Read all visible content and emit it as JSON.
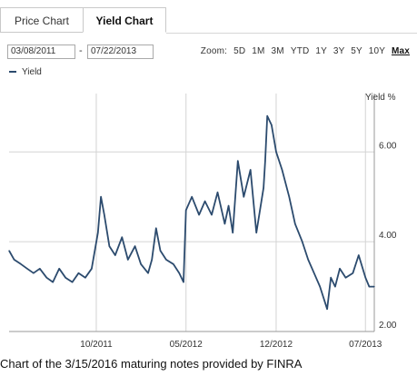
{
  "tabs": {
    "price": "Price Chart",
    "yield": "Yield Chart"
  },
  "date_from": "03/08/2011",
  "date_separator": "-",
  "date_to": "07/22/2013",
  "zoom": {
    "label": "Zoom:",
    "options": [
      "5D",
      "1M",
      "3M",
      "YTD",
      "1Y",
      "3Y",
      "5Y",
      "10Y"
    ],
    "selected": "Max"
  },
  "legend_label": "Yield",
  "caption": "Chart of the 3/15/2016 maturing notes provided by FINRA",
  "colors": {
    "line": "#2c4b6e",
    "grid": "#d4d4d4",
    "axis": "#999999"
  },
  "chart_data": {
    "type": "line",
    "ylabel": "Yield %",
    "ylim": [
      2.0,
      7.3
    ],
    "yticks": [
      "2.00",
      "4.00",
      "6.00"
    ],
    "ytick_values": [
      2.0,
      4.0,
      6.0
    ],
    "xlim": [
      "2011-03-08",
      "2013-07-22"
    ],
    "xticks": [
      "10/2011",
      "05/2012",
      "12/2012",
      "07/2013"
    ],
    "xtick_dates": [
      "2011-10-01",
      "2012-05-01",
      "2012-12-01",
      "2013-07-01"
    ],
    "grid": "vertical at x ticks, horizontal at y ticks",
    "series": [
      {
        "name": "Yield",
        "x": [
          "2011-03-08",
          "2011-03-20",
          "2011-04-05",
          "2011-04-20",
          "2011-05-05",
          "2011-05-20",
          "2011-06-05",
          "2011-06-20",
          "2011-07-05",
          "2011-07-20",
          "2011-08-05",
          "2011-08-20",
          "2011-09-05",
          "2011-09-20",
          "2011-10-05",
          "2011-10-12",
          "2011-10-20",
          "2011-11-01",
          "2011-11-15",
          "2011-12-01",
          "2011-12-15",
          "2012-01-01",
          "2012-01-15",
          "2012-02-01",
          "2012-02-10",
          "2012-02-20",
          "2012-03-01",
          "2012-03-15",
          "2012-04-01",
          "2012-04-15",
          "2012-04-25",
          "2012-05-01",
          "2012-05-15",
          "2012-06-01",
          "2012-06-15",
          "2012-07-01",
          "2012-07-15",
          "2012-08-01",
          "2012-08-10",
          "2012-08-20",
          "2012-09-01",
          "2012-09-15",
          "2012-10-01",
          "2012-10-15",
          "2012-11-01",
          "2012-11-05",
          "2012-11-10",
          "2012-11-20",
          "2012-12-01",
          "2012-12-15",
          "2013-01-01",
          "2013-01-15",
          "2013-02-01",
          "2013-02-15",
          "2013-03-01",
          "2013-03-15",
          "2013-04-01",
          "2013-04-10",
          "2013-04-20",
          "2013-05-01",
          "2013-05-15",
          "2013-06-01",
          "2013-06-15",
          "2013-07-01",
          "2013-07-10",
          "2013-07-22"
        ],
        "values": [
          3.8,
          3.6,
          3.5,
          3.4,
          3.3,
          3.4,
          3.2,
          3.1,
          3.4,
          3.2,
          3.1,
          3.3,
          3.2,
          3.4,
          4.2,
          5.0,
          4.6,
          3.9,
          3.7,
          4.1,
          3.6,
          3.9,
          3.5,
          3.3,
          3.6,
          4.3,
          3.8,
          3.6,
          3.5,
          3.3,
          3.1,
          4.7,
          5.0,
          4.6,
          4.9,
          4.6,
          5.1,
          4.4,
          4.8,
          4.2,
          5.8,
          5.0,
          5.6,
          4.2,
          5.2,
          5.8,
          6.8,
          6.6,
          6.0,
          5.6,
          5.0,
          4.4,
          4.0,
          3.6,
          3.3,
          3.0,
          2.5,
          3.2,
          3.0,
          3.4,
          3.2,
          3.3,
          3.7,
          3.2,
          3.0,
          3.0
        ]
      }
    ]
  }
}
